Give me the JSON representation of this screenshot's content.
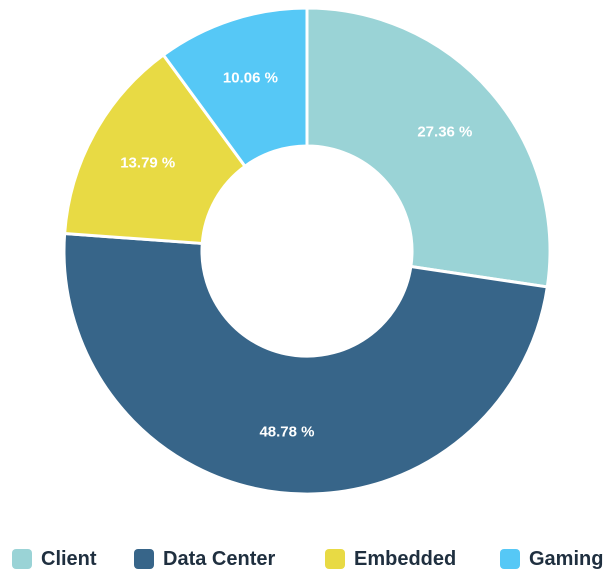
{
  "chart_data": {
    "type": "pie",
    "variant": "donut",
    "slices": [
      {
        "name": "Client",
        "value": 27.36,
        "label": "27.36 %",
        "color": "#9ad3d6"
      },
      {
        "name": "Data Center",
        "value": 48.78,
        "label": "48.78 %",
        "color": "#376589"
      },
      {
        "name": "Embedded",
        "value": 13.79,
        "label": "13.79 %",
        "color": "#e8da44"
      },
      {
        "name": "Gaming",
        "value": 10.06,
        "label": "10.06 %",
        "color": "#56c8f6"
      }
    ],
    "legend_position": "bottom"
  }
}
